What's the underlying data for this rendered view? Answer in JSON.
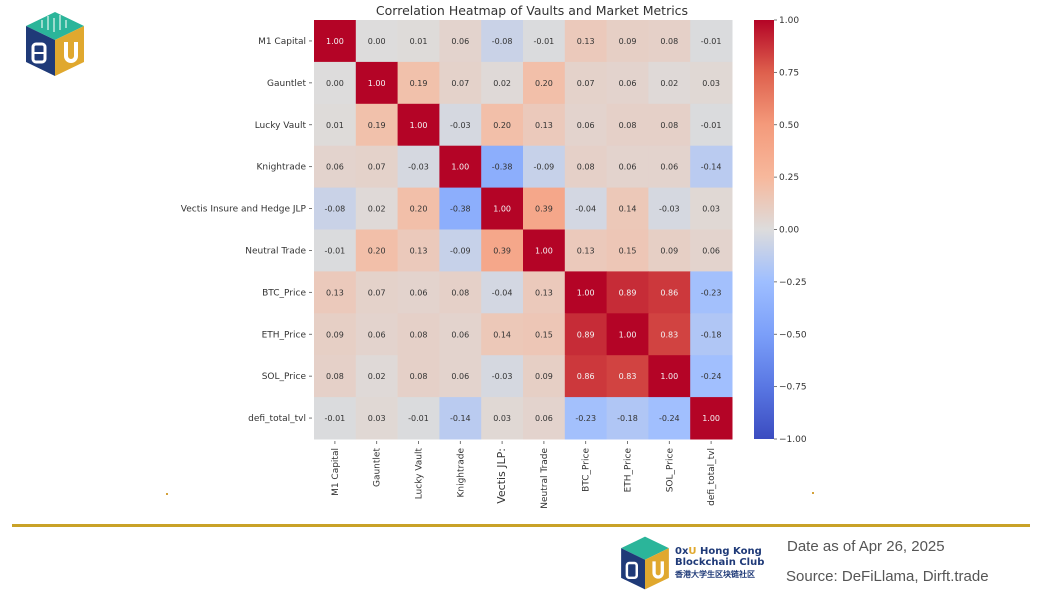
{
  "chart_data": {
    "type": "heatmap",
    "title": "Correlation Heatmap of Vaults and Market Metrics",
    "row_labels": [
      "M1 Capital",
      "Gauntlet",
      "Lucky Vault",
      "Knightrade",
      "Vectis Insure and Hedge JLP",
      "Neutral Trade",
      "BTC_Price",
      "ETH_Price",
      "SOL_Price",
      "defi_total_tvl"
    ],
    "col_labels": [
      "M1 Capital",
      "Gauntlet",
      "Lucky Vault",
      "Knightrade",
      "Vectis JLP:",
      "Neutral Trade",
      "BTC_Price",
      "ETH_Price",
      "SOL_Price",
      "defi_total_tvl"
    ],
    "values": [
      [
        1.0,
        0.0,
        0.01,
        0.06,
        -0.08,
        -0.01,
        0.13,
        0.09,
        0.08,
        -0.01
      ],
      [
        0.0,
        1.0,
        0.19,
        0.07,
        0.02,
        0.2,
        0.07,
        0.06,
        0.02,
        0.03
      ],
      [
        0.01,
        0.19,
        1.0,
        -0.03,
        0.2,
        0.13,
        0.06,
        0.08,
        0.08,
        -0.01
      ],
      [
        0.06,
        0.07,
        -0.03,
        1.0,
        -0.38,
        -0.09,
        0.08,
        0.06,
        0.06,
        -0.14
      ],
      [
        -0.08,
        0.02,
        0.2,
        -0.38,
        1.0,
        0.39,
        -0.04,
        0.14,
        -0.03,
        0.03
      ],
      [
        -0.01,
        0.2,
        0.13,
        -0.09,
        0.39,
        1.0,
        0.13,
        0.15,
        0.09,
        0.06
      ],
      [
        0.13,
        0.07,
        0.06,
        0.08,
        -0.04,
        0.13,
        1.0,
        0.89,
        0.86,
        -0.23
      ],
      [
        0.09,
        0.06,
        0.08,
        0.06,
        0.14,
        0.15,
        0.89,
        1.0,
        0.83,
        -0.18
      ],
      [
        0.08,
        0.02,
        0.08,
        0.06,
        -0.03,
        0.09,
        0.86,
        0.83,
        1.0,
        -0.24
      ],
      [
        -0.01,
        0.03,
        -0.01,
        -0.14,
        0.03,
        0.06,
        -0.23,
        -0.18,
        -0.24,
        1.0
      ]
    ],
    "colormap": "coolwarm",
    "vmin": -1.0,
    "vmax": 1.0,
    "colorbar_ticks": [
      "1.00",
      "0.75",
      "0.50",
      "0.25",
      "0.00",
      "−0.25",
      "−0.50",
      "−0.75",
      "−1.00"
    ],
    "colorbar_values": [
      1.0,
      0.75,
      0.5,
      0.25,
      0.0,
      -0.25,
      -0.5,
      -0.75,
      -1.0
    ],
    "colorbar_placement": "right",
    "annotations": "two-decimal values in each cell"
  },
  "footer": {
    "club_prefix_ox": "0x",
    "club_prefix_u": "U",
    "club_line1": " Hong Kong",
    "club_line2": "Blockchain Club",
    "club_cn": "香港大学生区块链社区",
    "date": "Date as of Apr 26, 2025",
    "source": "Source: DeFiLlama, Dirft.trade"
  },
  "colors": {
    "accent_rule": "#c9a227",
    "logo_teal": "#2bb59a",
    "logo_navy": "#1f3a78",
    "logo_gold": "#e0a82e"
  }
}
